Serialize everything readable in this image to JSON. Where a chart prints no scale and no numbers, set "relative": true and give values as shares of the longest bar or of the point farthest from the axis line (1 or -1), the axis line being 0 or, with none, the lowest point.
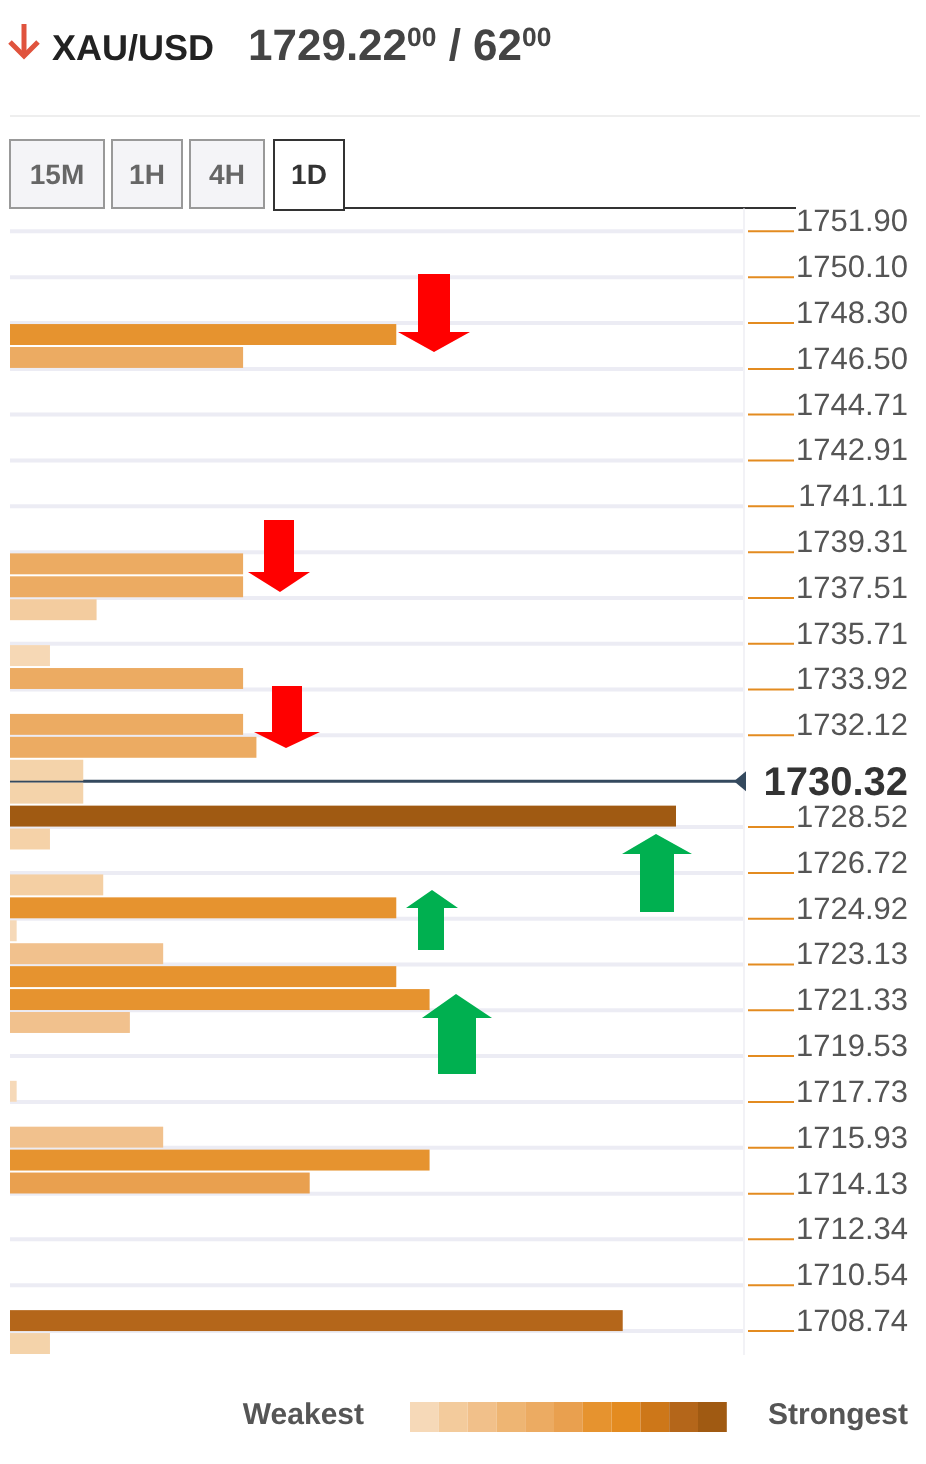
{
  "chart_data": {
    "type": "bar",
    "orientation": "horizontal",
    "relative": true,
    "title": "XAU/USD",
    "subtitle": "1729.22$^{00}$ / 62$^{00}$",
    "x": [
      1747.85,
      1746.95,
      1738.85,
      1737.95,
      1737.05,
      1735.25,
      1734.35,
      1732.55,
      1731.65,
      1730.75,
      1729.85,
      1728.95,
      1728.05,
      1726.25,
      1725.35,
      1724.45,
      1723.55,
      1722.65,
      1721.75,
      1720.85,
      1718.15,
      1716.35,
      1715.45,
      1714.55,
      1709.15,
      1708.25
    ],
    "values": [
      0.58,
      0.35,
      0.35,
      0.35,
      0.13,
      0.06,
      0.35,
      0.35,
      0.37,
      0.11,
      0.11,
      1,
      0.06,
      0.14,
      0.58,
      0.01,
      0.23,
      0.58,
      0.63,
      0.18,
      0.01,
      0.23,
      0.63,
      0.45,
      0.92,
      0.06
    ],
    "colors": [
      "#e6932f",
      "#ecab62",
      "#ecab62",
      "#ecab62",
      "#f3cc9f",
      "#f6d8b5",
      "#ecab62",
      "#ecab62",
      "#ecab62",
      "#f4d3aa",
      "#f4d3aa",
      "#a05a12",
      "#f5d2a8",
      "#f4cfa3",
      "#e6932f",
      "#f6d9b8",
      "#f1c18d",
      "#e6932f",
      "#e6932f",
      "#f1c18d",
      "#f6d9b8",
      "#f1c18d",
      "#e6932f",
      "#e9a04f",
      "#b4661a",
      "#f4d3aa"
    ],
    "ylim": [
      1707.8,
      1752.8
    ],
    "yticks": [
      {
        "value": 1751.9,
        "label": "1751.90"
      },
      {
        "value": 1750.1,
        "label": "1750.10"
      },
      {
        "value": 1748.3,
        "label": "1748.30"
      },
      {
        "value": 1746.5,
        "label": "1746.50"
      },
      1744.71,
      1742.91,
      1741.11,
      1739.31,
      1737.51,
      1735.71,
      1733.92,
      1732.12,
      1728.52,
      1726.72,
      1724.92,
      1723.13,
      1721.33,
      1719.53,
      1717.73,
      1715.93,
      1714.13,
      1712.34,
      1710.54,
      1708.74
    ],
    "ref_lines": [
      {
        "axis": "y",
        "value": 1730.32,
        "label": "1730.32",
        "color": "#34495e"
      }
    ],
    "grid": "y",
    "annotations": [
      "15M",
      "1H",
      "4H",
      "1D",
      "Weakest",
      "Strongest"
    ]
  }
}
